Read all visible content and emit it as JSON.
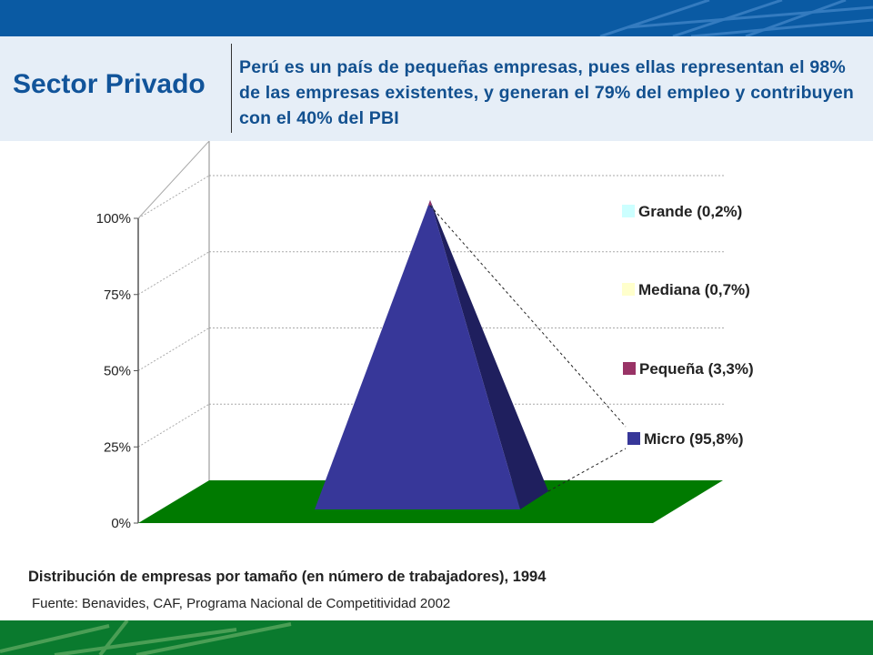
{
  "header": {
    "section_title": "Sector Privado",
    "headline": "Perú es un país de pequeñas empresas, pues ellas representan el 98% de las empresas existentes, y generan el 79% del empleo y contribuyen con el 40% del PBI"
  },
  "colors": {
    "top_bar": "#0a5aa3",
    "header_band": "#e6eef7",
    "title_text": "#11549a",
    "floor": "#007a00",
    "micro": "#373799",
    "micro_shadow": "#1f1f5e",
    "pequena": "#993366",
    "mediana": "#ffffcc",
    "grande": "#ccffff",
    "bottom_bar": "#0a7a2e"
  },
  "chart_data": {
    "type": "pyramid",
    "title": "",
    "ylim": [
      0,
      100
    ],
    "y_ticks": [
      "0%",
      "25%",
      "50%",
      "75%",
      "100%"
    ],
    "grid": true,
    "legend_position": "right",
    "series": [
      {
        "name": "Micro (95,8%)",
        "value": 95.8
      },
      {
        "name": "Pequeña (3,3%)",
        "value": 3.3
      },
      {
        "name": "Mediana (0,7%)",
        "value": 0.7
      },
      {
        "name": "Grande (0,2%)",
        "value": 0.2
      }
    ]
  },
  "caption": "Distribución de empresas por tamaño (en número de trabajadores), 1994",
  "source": "Fuente: Benavides, CAF, Programa Nacional de Competitividad 2002"
}
